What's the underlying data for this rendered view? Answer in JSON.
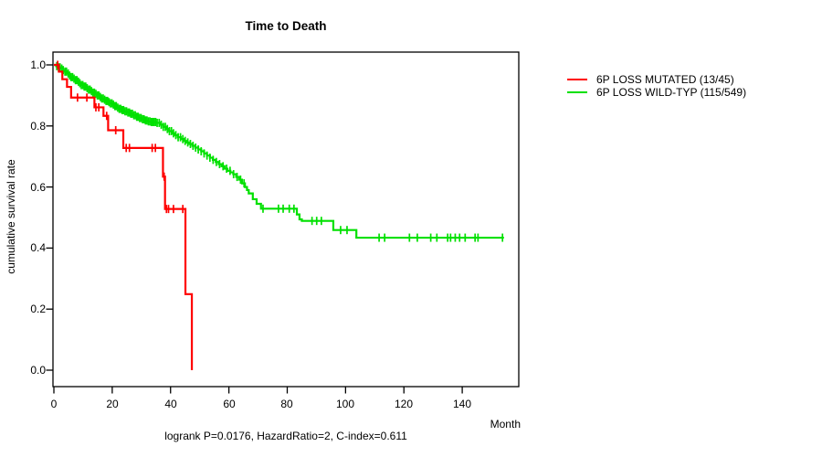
{
  "title": "Time to Death",
  "caption": "logrank P=0.0176, HazardRatio=2, C-index=0.611",
  "axes": {
    "x_label": "Month",
    "y_label": "cumulative survival rate",
    "x_tick_labels": [
      "0",
      "20",
      "40",
      "60",
      "80",
      "100",
      "120",
      "140"
    ],
    "y_tick_labels": [
      "0.0",
      "0.2",
      "0.4",
      "0.6",
      "0.8",
      "1.0"
    ]
  },
  "legend": [
    {
      "label": "6P LOSS MUTATED (13/45)",
      "color": "#ff0000"
    },
    {
      "label": "6P LOSS WILD-TYP (115/549)",
      "color": "#00e000"
    }
  ],
  "chart_data": {
    "type": "line",
    "subtype": "kaplan-meier-step",
    "title": "Time to Death",
    "xlabel": "Month",
    "ylabel": "cumulative survival rate",
    "annotation": "logrank P=0.0176, HazardRatio=2, C-index=0.611",
    "xlim": [
      0,
      160
    ],
    "ylim": [
      0,
      1
    ],
    "x_ticks": [
      0,
      20,
      40,
      60,
      80,
      100,
      120,
      140
    ],
    "y_ticks": [
      0.0,
      0.2,
      0.4,
      0.6,
      0.8,
      1.0
    ],
    "grid": false,
    "legend_position": "right-outside",
    "series": [
      {
        "name": "6P LOSS WILD-TYP (115/549)",
        "color": "#00e000",
        "end_time": 154.3,
        "steps": [
          [
            0,
            1.0
          ],
          [
            0.8,
            0.996
          ],
          [
            1.5,
            0.992
          ],
          [
            2.2,
            0.988
          ],
          [
            3.0,
            0.983
          ],
          [
            3.7,
            0.978
          ],
          [
            4.4,
            0.972
          ],
          [
            5.0,
            0.965
          ],
          [
            5.8,
            0.96
          ],
          [
            6.5,
            0.955
          ],
          [
            7.2,
            0.95
          ],
          [
            8.0,
            0.945
          ],
          [
            8.7,
            0.94
          ],
          [
            9.4,
            0.934
          ],
          [
            10.1,
            0.929
          ],
          [
            11.0,
            0.924
          ],
          [
            11.8,
            0.919
          ],
          [
            12.5,
            0.914
          ],
          [
            13.2,
            0.909
          ],
          [
            14.0,
            0.905
          ],
          [
            14.8,
            0.9
          ],
          [
            15.5,
            0.895
          ],
          [
            16.3,
            0.89
          ],
          [
            17.0,
            0.886
          ],
          [
            17.8,
            0.882
          ],
          [
            18.5,
            0.878
          ],
          [
            19.3,
            0.874
          ],
          [
            20.0,
            0.87
          ],
          [
            20.8,
            0.865
          ],
          [
            21.5,
            0.86
          ],
          [
            22.3,
            0.856
          ],
          [
            23.0,
            0.852
          ],
          [
            24.0,
            0.848
          ],
          [
            25.0,
            0.844
          ],
          [
            26.0,
            0.84
          ],
          [
            27.0,
            0.835
          ],
          [
            28.0,
            0.83
          ],
          [
            29.0,
            0.826
          ],
          [
            30.0,
            0.822
          ],
          [
            31.0,
            0.818
          ],
          [
            32.0,
            0.815
          ],
          [
            33.0,
            0.813
          ],
          [
            35.0,
            0.81
          ],
          [
            36.5,
            0.804
          ],
          [
            37.5,
            0.797
          ],
          [
            38.5,
            0.79
          ],
          [
            39.5,
            0.783
          ],
          [
            40.5,
            0.776
          ],
          [
            41.5,
            0.77
          ],
          [
            42.5,
            0.763
          ],
          [
            43.5,
            0.757
          ],
          [
            44.5,
            0.751
          ],
          [
            45.5,
            0.746
          ],
          [
            46.5,
            0.741
          ],
          [
            47.5,
            0.735
          ],
          [
            48.5,
            0.729
          ],
          [
            49.5,
            0.723
          ],
          [
            50.5,
            0.717
          ],
          [
            51.5,
            0.71
          ],
          [
            52.5,
            0.703
          ],
          [
            53.5,
            0.696
          ],
          [
            54.5,
            0.689
          ],
          [
            55.5,
            0.682
          ],
          [
            56.5,
            0.675
          ],
          [
            57.5,
            0.668
          ],
          [
            58.5,
            0.66
          ],
          [
            59.5,
            0.653
          ],
          [
            60.5,
            0.648
          ],
          [
            61.5,
            0.642
          ],
          [
            62.5,
            0.633
          ],
          [
            63.5,
            0.624
          ],
          [
            64.5,
            0.612
          ],
          [
            65.5,
            0.6
          ],
          [
            66.2,
            0.59
          ],
          [
            66.8,
            0.579
          ],
          [
            68.2,
            0.56
          ],
          [
            69.5,
            0.545
          ],
          [
            71.0,
            0.529
          ],
          [
            83.3,
            0.51
          ],
          [
            84.2,
            0.494
          ],
          [
            85.0,
            0.489
          ],
          [
            95.8,
            0.459
          ],
          [
            103.7,
            0.434
          ]
        ],
        "censor_times": [
          1.0,
          1.6,
          2.1,
          2.7,
          3.2,
          3.8,
          4.3,
          4.9,
          5.4,
          5.9,
          6.4,
          6.9,
          7.4,
          7.9,
          8.4,
          8.9,
          9.4,
          9.9,
          10.4,
          10.9,
          11.4,
          11.9,
          12.4,
          12.9,
          13.4,
          13.9,
          14.4,
          14.9,
          15.4,
          15.9,
          16.4,
          16.9,
          17.4,
          17.9,
          18.4,
          18.9,
          19.4,
          19.9,
          20.4,
          20.9,
          21.4,
          21.9,
          22.4,
          22.9,
          23.4,
          23.9,
          24.4,
          24.9,
          25.4,
          25.9,
          26.4,
          26.9,
          27.4,
          27.9,
          28.4,
          28.9,
          29.4,
          29.9,
          30.4,
          30.9,
          31.4,
          31.9,
          32.4,
          32.9,
          33.4,
          33.9,
          34.4,
          34.9,
          35.4,
          36.1,
          36.8,
          37.5,
          38.2,
          38.9,
          39.6,
          40.3,
          41.0,
          41.8,
          42.6,
          43.4,
          44.2,
          45.0,
          45.9,
          46.8,
          47.7,
          48.6,
          49.5,
          50.5,
          51.5,
          52.5,
          53.5,
          54.6,
          55.7,
          56.8,
          58.0,
          59.2,
          60.4,
          61.6,
          62.8,
          64.0,
          65.2,
          71.7,
          77.0,
          78.6,
          80.7,
          82.3,
          88.5,
          90.1,
          91.7,
          98.3,
          100.5,
          111.5,
          113.4,
          121.9,
          124.6,
          129.2,
          131.3,
          135.0,
          136.0,
          137.6,
          139.1,
          141.0,
          144.4,
          145.4,
          153.8
        ]
      },
      {
        "name": "6P LOSS MUTATED (13/45)",
        "color": "#ff0000",
        "end_time": 47.3,
        "steps": [
          [
            0,
            1.0
          ],
          [
            1.7,
            0.978
          ],
          [
            2.9,
            0.953
          ],
          [
            4.5,
            0.928
          ],
          [
            5.9,
            0.893
          ],
          [
            13.9,
            0.861
          ],
          [
            17.0,
            0.833
          ],
          [
            18.6,
            0.786
          ],
          [
            23.8,
            0.728
          ],
          [
            37.4,
            0.634
          ],
          [
            38.1,
            0.528
          ],
          [
            45.1,
            0.249
          ],
          [
            47.3,
            0.0
          ]
        ],
        "censor_times": [
          1.3,
          8.1,
          11.3,
          14.4,
          15.4,
          18.1,
          21.2,
          24.8,
          25.9,
          33.7,
          34.8,
          37.8,
          38.6,
          39.3,
          41.0,
          44.2
        ]
      }
    ]
  }
}
